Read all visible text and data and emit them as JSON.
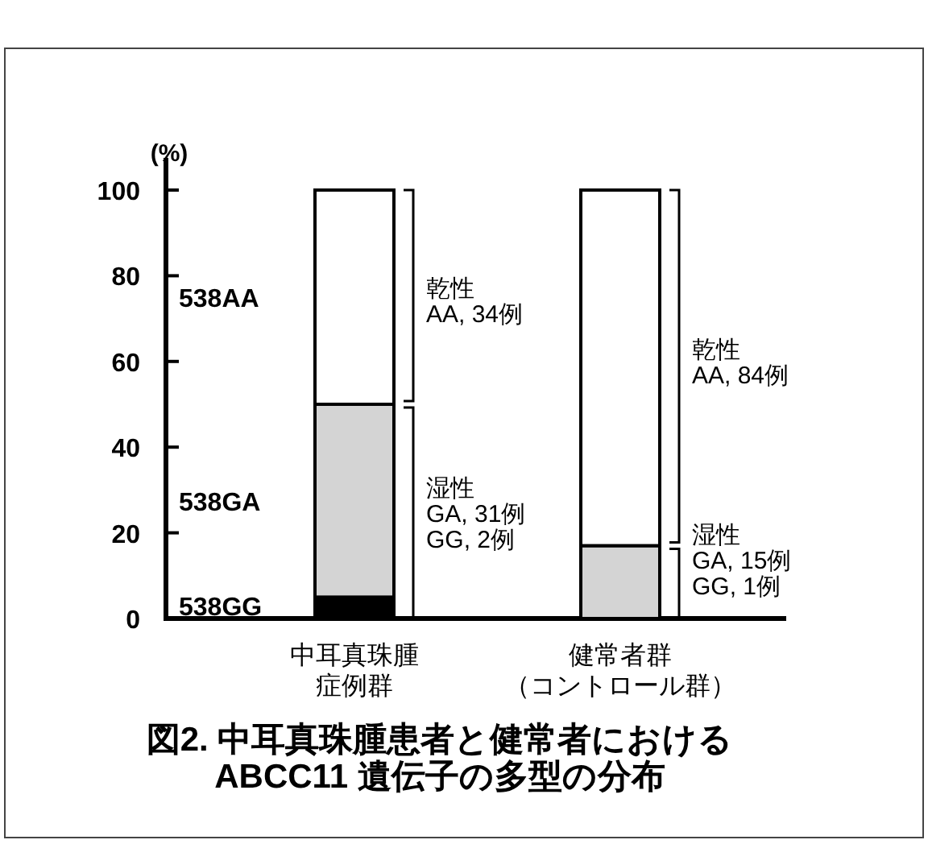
{
  "chart_data": {
    "type": "bar",
    "stacked": true,
    "title": "図2. 中耳真珠腫患者と健常者における\nABCC11 遺伝子の多型の分布",
    "ylabel": "(%)",
    "categories": [
      "中耳真珠腫症例群",
      "健常者群（コントロール群）"
    ],
    "series": [
      {
        "name": "538GG",
        "color": "#000000",
        "values": [
          5,
          0
        ]
      },
      {
        "name": "538GA",
        "color": "#d4d4d4",
        "values": [
          45,
          17
        ]
      },
      {
        "name": "538AA",
        "color": "#ffffff",
        "values": [
          50,
          83
        ]
      }
    ],
    "ylim": [
      0,
      100
    ],
    "yticks": [
      0,
      20,
      40,
      60,
      80,
      100
    ],
    "grid": false,
    "legend": false,
    "annotations": [
      "乾性\nAA, 34例",
      "湿性\nGA, 31例\nGG, 2例",
      "乾性\nAA, 84例",
      "湿性\nGA, 15例\nGG, 1例"
    ]
  }
}
